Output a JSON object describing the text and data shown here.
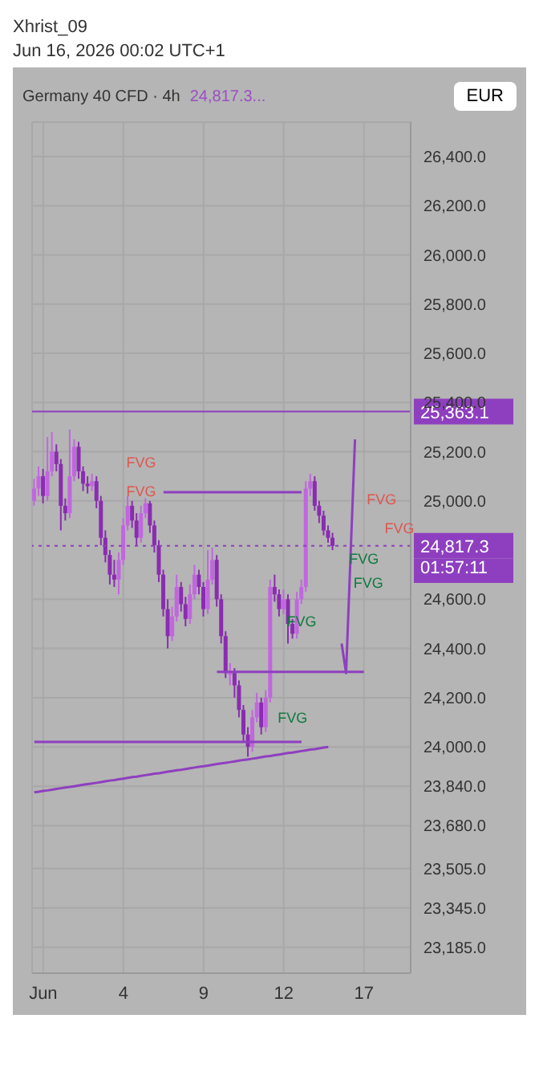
{
  "chart_data": {
    "type": "candlestick",
    "title": "Germany 40 CFD · 4h",
    "subtitle": "24,817.3...",
    "annotations": [
      "Xhrist_09",
      "Jun 16, 2026 00:02 UTC+1",
      "EUR",
      "01:57:11",
      "FVG",
      "FVG",
      "FVG",
      "FVG",
      "FVG",
      "FVG",
      "FVG",
      "FVG"
    ],
    "categories": [
      null,
      null,
      "Jun",
      null,
      null,
      null,
      null,
      null,
      null,
      null,
      null,
      null,
      null,
      null,
      null,
      null,
      null,
      null,
      null,
      null,
      "4",
      null,
      null,
      null,
      null,
      null,
      null,
      null,
      null,
      null,
      null,
      null,
      null,
      null,
      null,
      null,
      null,
      null,
      "9",
      null,
      null,
      null,
      null,
      null,
      null,
      null,
      null,
      null,
      null,
      null,
      null,
      null,
      null,
      null,
      null,
      null,
      "12",
      null,
      null,
      null,
      null,
      null,
      null,
      null,
      null,
      null,
      null,
      null,
      null,
      null,
      null,
      null,
      null,
      null,
      "17",
      null,
      null,
      null,
      null,
      null,
      null,
      null,
      null,
      null,
      null
    ],
    "ohlc": [
      [
        25000,
        25090,
        24980,
        25050
      ],
      [
        25050,
        25140,
        25020,
        25100
      ],
      [
        25100,
        25130,
        24990,
        25020
      ],
      [
        25020,
        25260,
        25000,
        25120
      ],
      [
        25120,
        25280,
        25100,
        25200
      ],
      [
        25200,
        25230,
        25120,
        25150
      ],
      [
        25150,
        25170,
        24880,
        24980
      ],
      [
        24980,
        25010,
        24920,
        24950
      ],
      [
        24950,
        25290,
        24930,
        25100
      ],
      [
        25100,
        25250,
        25080,
        25220
      ],
      [
        25220,
        25240,
        25090,
        25120
      ],
      [
        25120,
        25140,
        25040,
        25070
      ],
      [
        25070,
        25100,
        25030,
        25060
      ],
      [
        25060,
        25110,
        25040,
        25080
      ],
      [
        25080,
        25100,
        24970,
        25000
      ],
      [
        25000,
        25020,
        24820,
        24850
      ],
      [
        24850,
        24880,
        24750,
        24780
      ],
      [
        24780,
        24800,
        24660,
        24700
      ],
      [
        24700,
        24760,
        24650,
        24680
      ],
      [
        24680,
        24790,
        24620,
        24760
      ],
      [
        24760,
        24930,
        24740,
        24900
      ],
      [
        24900,
        25020,
        24880,
        24980
      ],
      [
        24980,
        25000,
        24890,
        24920
      ],
      [
        24920,
        24950,
        24820,
        24850
      ],
      [
        24850,
        24980,
        24830,
        24950
      ],
      [
        24950,
        25010,
        24930,
        24990
      ],
      [
        24990,
        25000,
        24870,
        24900
      ],
      [
        24900,
        24920,
        24790,
        24820
      ],
      [
        24820,
        24840,
        24670,
        24700
      ],
      [
        24700,
        24720,
        24530,
        24560
      ],
      [
        24560,
        24600,
        24400,
        24450
      ],
      [
        24450,
        24570,
        24430,
        24530
      ],
      [
        24530,
        24700,
        24510,
        24650
      ],
      [
        24650,
        24670,
        24550,
        24580
      ],
      [
        24580,
        24610,
        24490,
        24520
      ],
      [
        24520,
        24660,
        24500,
        24620
      ],
      [
        24620,
        24740,
        24600,
        24700
      ],
      [
        24700,
        24720,
        24620,
        24650
      ],
      [
        24650,
        24670,
        24530,
        24560
      ],
      [
        24560,
        24800,
        24540,
        24680
      ],
      [
        24680,
        24810,
        24660,
        24760
      ],
      [
        24760,
        24780,
        24570,
        24600
      ],
      [
        24600,
        24620,
        24420,
        24450
      ],
      [
        24450,
        24470,
        24280,
        24300
      ],
      [
        24300,
        24340,
        24250,
        24300
      ],
      [
        24300,
        24320,
        24200,
        24250
      ],
      [
        24250,
        24270,
        24120,
        24150
      ],
      [
        24150,
        24170,
        24020,
        24050
      ],
      [
        24050,
        24080,
        23960,
        24000
      ],
      [
        24000,
        24150,
        23980,
        24120
      ],
      [
        24120,
        24220,
        24100,
        24180
      ],
      [
        24180,
        24200,
        24050,
        24080
      ],
      [
        24080,
        24230,
        24060,
        24200
      ],
      [
        24200,
        24680,
        24180,
        24650
      ],
      [
        24650,
        24700,
        24590,
        24620
      ],
      [
        24620,
        24640,
        24530,
        24560
      ],
      [
        24560,
        24640,
        24540,
        24600
      ],
      [
        24600,
        24620,
        24420,
        24500
      ],
      [
        24500,
        24520,
        24440,
        24460
      ],
      [
        24460,
        24630,
        24440,
        24600
      ],
      [
        24600,
        24680,
        24580,
        24650
      ],
      [
        24650,
        25080,
        24630,
        25050
      ],
      [
        25050,
        25110,
        25020,
        25080
      ],
      [
        25080,
        25100,
        24960,
        24980
      ],
      [
        24980,
        25000,
        24910,
        24940
      ],
      [
        24940,
        24960,
        24860,
        24880
      ],
      [
        24880,
        24900,
        24830,
        24850
      ],
      [
        24850,
        24870,
        24800,
        24817.3
      ],
      null,
      null,
      null,
      null,
      null,
      null,
      null,
      null,
      null,
      null,
      null,
      null,
      null,
      null,
      null,
      null,
      null
    ],
    "series": [
      {
        "type": "line",
        "color": "#8e3fbf",
        "values": [
          null,
          null,
          null,
          null,
          null,
          null,
          null,
          null,
          null,
          null,
          null,
          null,
          null,
          null,
          null,
          null,
          null,
          null,
          null,
          null,
          null,
          null,
          null,
          null,
          null,
          null,
          null,
          null,
          null,
          25035,
          25035,
          25035,
          25035,
          25035,
          25035,
          25035,
          25035,
          25035,
          25035,
          25035,
          25035,
          25035,
          25035,
          25035,
          25035,
          25035,
          25035,
          25035,
          25035,
          25035,
          25035,
          25035,
          25035,
          25035,
          25035,
          25035,
          25035,
          25035,
          25035,
          25035,
          25035,
          null,
          null,
          null,
          null,
          null,
          null,
          null,
          null,
          null,
          null,
          null,
          null,
          null,
          null,
          null,
          null,
          null,
          null,
          null,
          null,
          null,
          null,
          null,
          null
        ]
      },
      {
        "type": "line",
        "color": "#8e3fbf",
        "values": [
          null,
          null,
          null,
          null,
          null,
          null,
          null,
          null,
          null,
          null,
          null,
          null,
          null,
          null,
          null,
          null,
          null,
          null,
          null,
          null,
          null,
          null,
          null,
          null,
          null,
          null,
          null,
          null,
          null,
          null,
          null,
          null,
          null,
          null,
          null,
          null,
          null,
          null,
          null,
          null,
          null,
          24305,
          24305,
          24305,
          24305,
          24305,
          24305,
          24305,
          24305,
          24305,
          24305,
          24305,
          24305,
          24305,
          24305,
          24305,
          24305,
          24305,
          24305,
          24305,
          24305,
          24305,
          24305,
          24305,
          24305,
          24305,
          24305,
          24305,
          24305,
          24305,
          24305,
          24305,
          24305,
          24305,
          24305,
          null,
          null,
          null,
          null,
          null,
          null,
          null,
          null,
          null,
          null
        ]
      },
      {
        "type": "line",
        "color": "#8e3fbf",
        "values": [
          24020,
          24020,
          24020,
          24020,
          24020,
          24020,
          24020,
          24020,
          24020,
          24020,
          24020,
          24020,
          24020,
          24020,
          24020,
          24020,
          24020,
          24020,
          24020,
          24020,
          24020,
          24020,
          24020,
          24020,
          24020,
          24020,
          24020,
          24020,
          24020,
          24020,
          24020,
          24020,
          24020,
          24020,
          24020,
          24020,
          24020,
          24020,
          24020,
          24020,
          24020,
          24020,
          24020,
          24020,
          24020,
          24020,
          24020,
          24020,
          24020,
          24020,
          24020,
          24020,
          24020,
          24020,
          24020,
          24020,
          24020,
          24020,
          24020,
          24020,
          24020,
          null,
          null,
          null,
          null,
          null,
          null,
          null,
          null,
          null,
          null,
          null,
          null,
          null,
          null,
          null,
          null,
          null,
          null,
          null,
          null,
          null,
          null,
          null,
          null
        ]
      },
      {
        "type": "line",
        "color": "#8e3fbf",
        "values": [
          23815,
          23818,
          23821,
          23823,
          23826,
          23829,
          23832,
          23835,
          23837,
          23840,
          23843,
          23846,
          23849,
          23851,
          23854,
          23857,
          23860,
          23863,
          23865,
          23868,
          23871,
          23874,
          23877,
          23879,
          23882,
          23885,
          23888,
          23891,
          23893,
          23896,
          23899,
          23902,
          23905,
          23907,
          23910,
          23913,
          23916,
          23919,
          23921,
          23924,
          23927,
          23930,
          23933,
          23935,
          23938,
          23941,
          23944,
          23947,
          23949,
          23952,
          23955,
          23958,
          23961,
          23963,
          23966,
          23969,
          23972,
          23975,
          23977,
          23980,
          23983,
          23986,
          23989,
          23991,
          23994,
          23997,
          24000,
          null,
          null,
          null,
          null,
          null,
          null,
          null,
          null,
          null,
          null,
          null,
          null,
          null,
          null,
          null,
          null,
          null,
          null
        ]
      },
      {
        "type": "line",
        "color": "#8e3fbf",
        "values": [
          null,
          null,
          null,
          null,
          null,
          null,
          null,
          null,
          null,
          null,
          null,
          null,
          null,
          null,
          null,
          null,
          null,
          null,
          null,
          null,
          null,
          null,
          null,
          null,
          null,
          null,
          null,
          null,
          null,
          null,
          null,
          null,
          null,
          null,
          null,
          null,
          null,
          null,
          null,
          null,
          null,
          null,
          null,
          null,
          null,
          null,
          null,
          null,
          null,
          null,
          null,
          null,
          null,
          null,
          null,
          null,
          null,
          null,
          null,
          null,
          null,
          null,
          null,
          null,
          null,
          null,
          null,
          null,
          null,
          24420,
          24300,
          24775,
          25250,
          null,
          null,
          null,
          null,
          null,
          null,
          null,
          null,
          null,
          null,
          null,
          null
        ]
      }
    ],
    "ref_lines": [
      {
        "axis": "y",
        "value": 25363.1,
        "label": "25,363.1",
        "color": "#8e3fbf",
        "line_style": "solid"
      },
      {
        "axis": "y",
        "value": 24817.3,
        "label": "24,817.3",
        "color": "#8e3fbf",
        "line_style": "dotted"
      }
    ],
    "ylim": [
      23080,
      26540
    ],
    "yticks": [
      {
        "value": 26400,
        "label": "26,400.0"
      },
      {
        "value": 26200,
        "label": "26,200.0"
      },
      {
        "value": 26000,
        "label": "26,000.0"
      },
      {
        "value": 25800,
        "label": "25,800.0"
      },
      {
        "value": 25600,
        "label": "25,600.0"
      },
      {
        "value": 25400,
        "label": "25,400.0"
      },
      {
        "value": 25200,
        "label": "25,200.0"
      },
      {
        "value": 25000,
        "label": "25,000.0"
      },
      {
        "value": 24600,
        "label": "24,600.0"
      },
      {
        "value": 24400,
        "label": "24,400.0"
      },
      {
        "value": 24200,
        "label": "24,200.0"
      },
      {
        "value": 24000,
        "label": "24,000.0"
      },
      {
        "value": 23840,
        "label": "23,840.0"
      },
      {
        "value": 23680,
        "label": "23,680.0"
      },
      {
        "value": 23505,
        "label": "23,505.0"
      },
      {
        "value": 23345,
        "label": "23,345.0"
      },
      {
        "value": 23185,
        "label": "23,185.0"
      }
    ],
    "grid": true
  }
}
